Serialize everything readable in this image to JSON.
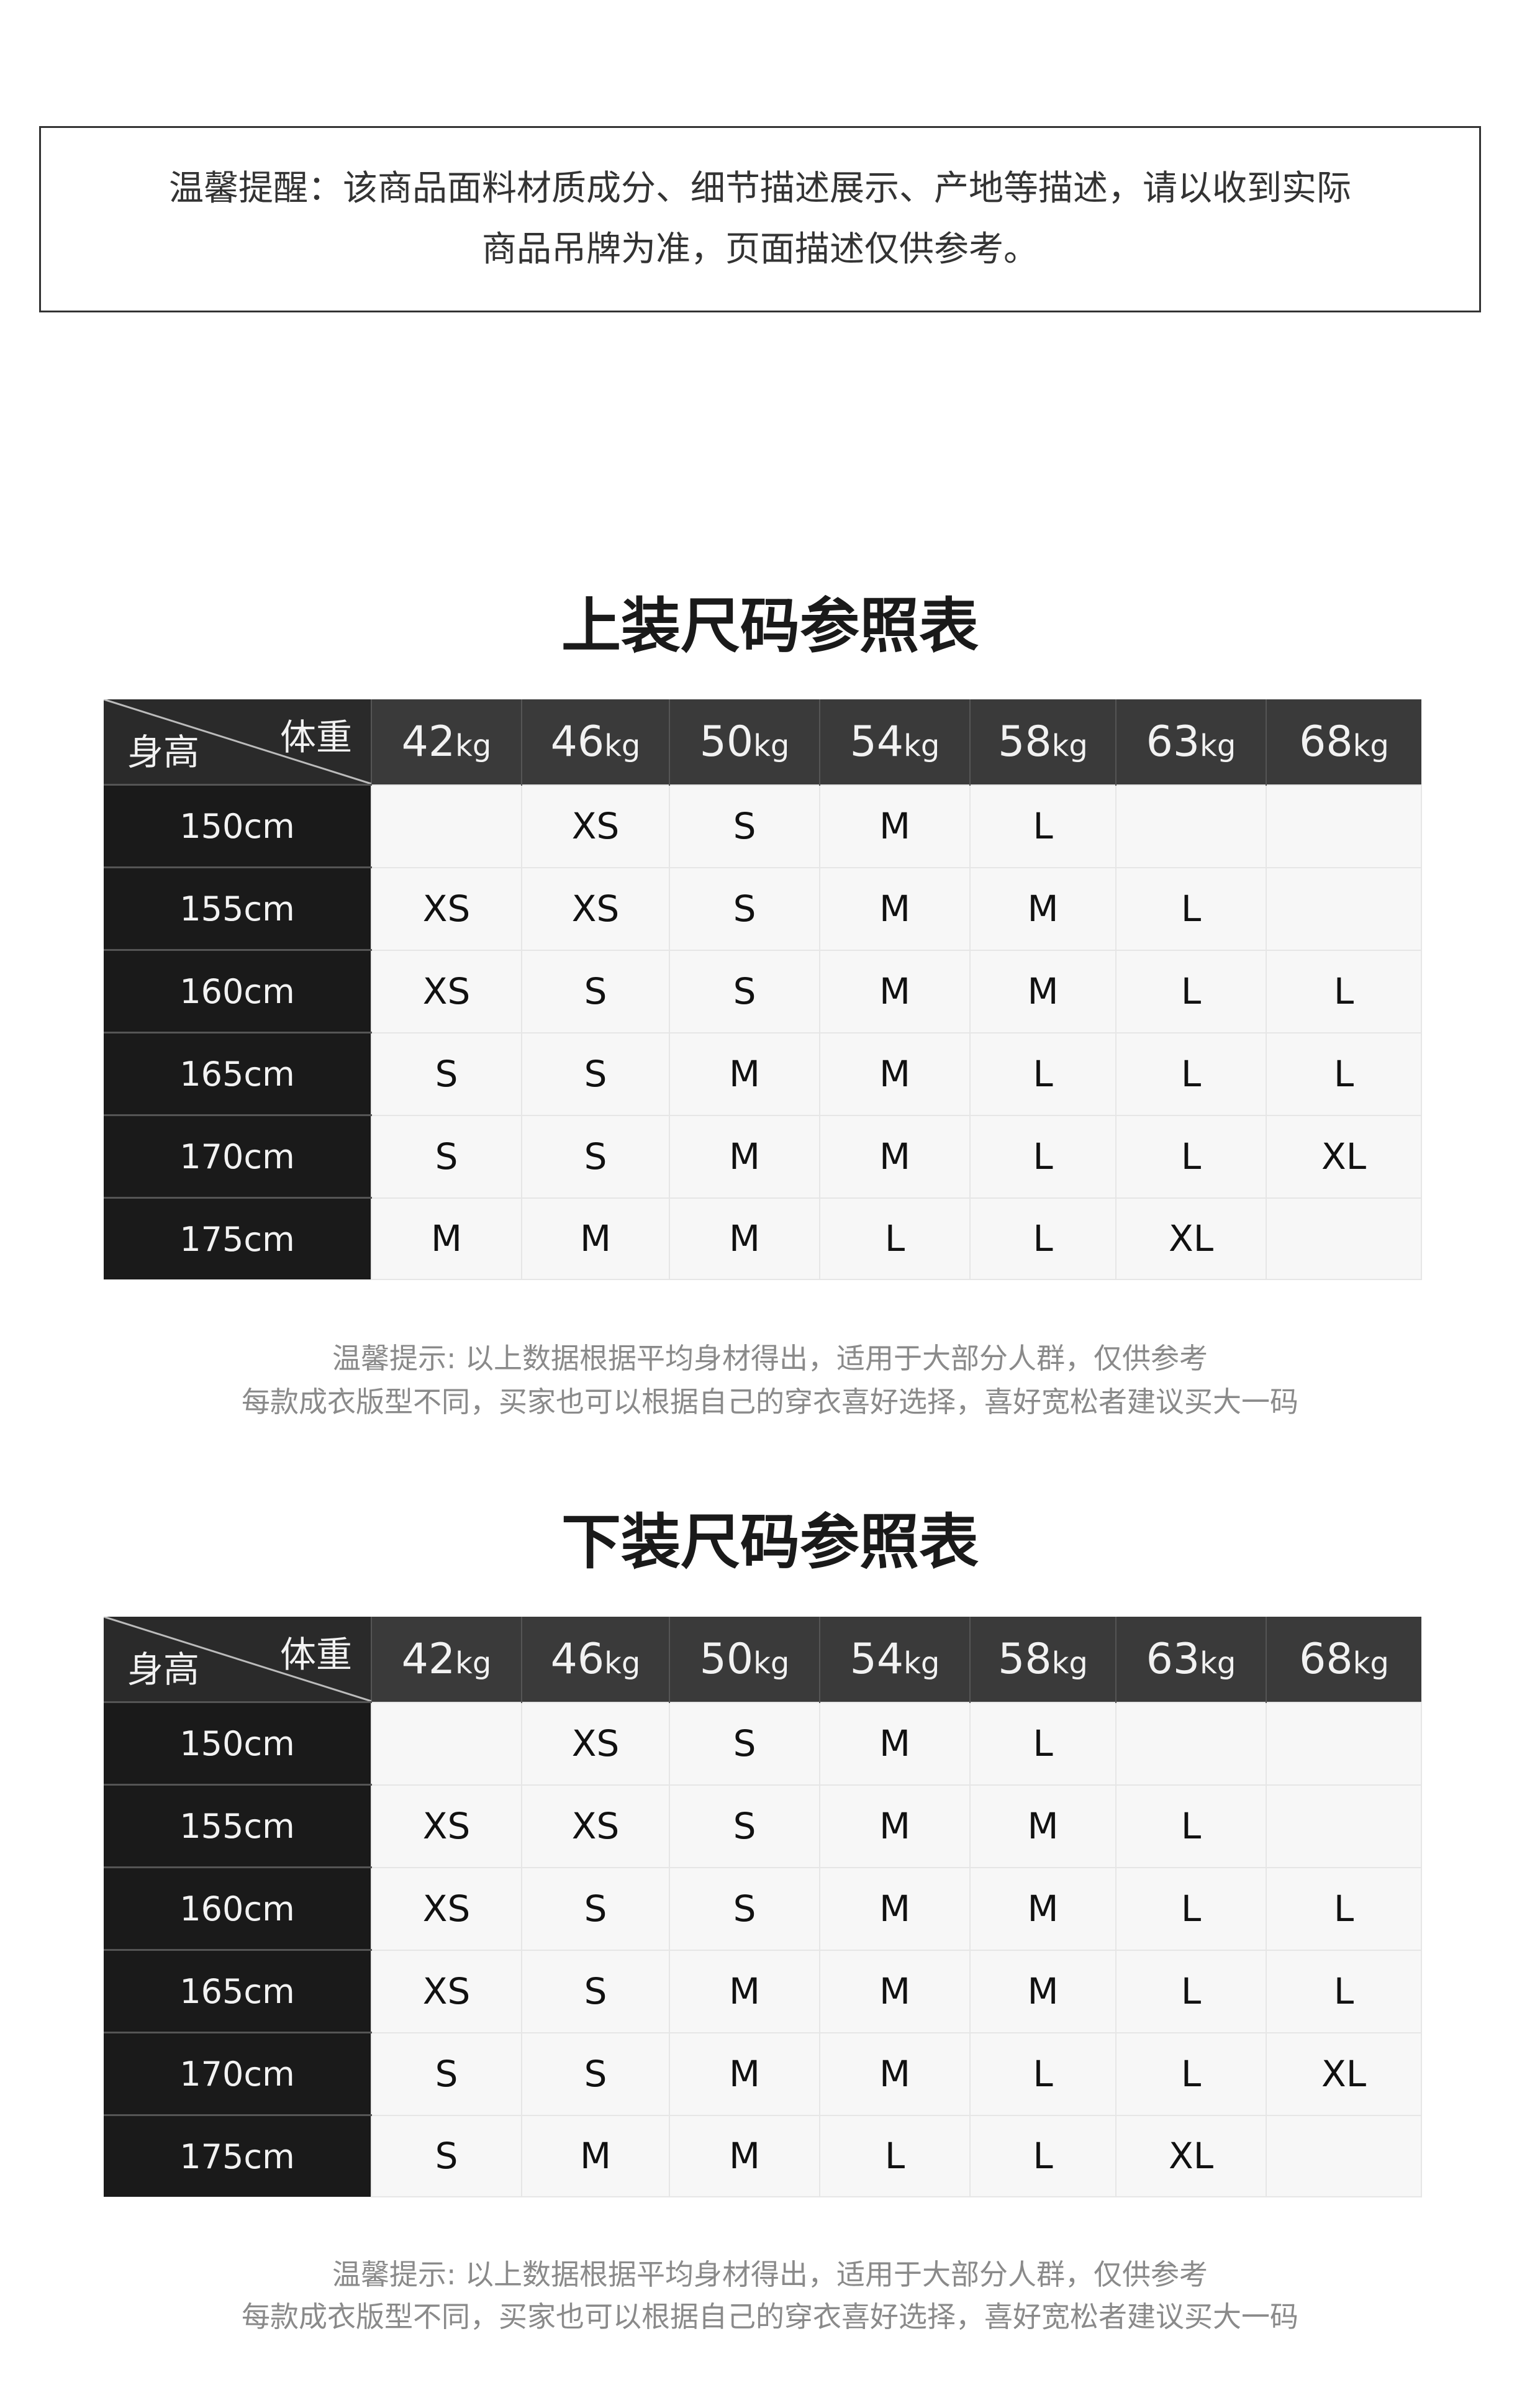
{
  "notice": {
    "line1": "温馨提醒：该商品面料材质成分、细节描述展示、产地等描述，请以收到实际",
    "line2": "商品吊牌为准，页面描述仅供参考。"
  },
  "colors": {
    "header_bg": "#3a3a3a",
    "row_header_bg": "#1a1a1a",
    "cell_bg": "#f7f7f7"
  },
  "tables": [
    {
      "title": "上装尺码参照表",
      "corner_weight": "体重",
      "corner_height": "身高",
      "weights": [
        "42",
        "46",
        "50",
        "54",
        "58",
        "63",
        "68"
      ],
      "weight_unit": "kg",
      "rows": [
        {
          "height": "150cm",
          "sizes": [
            "",
            "XS",
            "S",
            "M",
            "L",
            "",
            ""
          ]
        },
        {
          "height": "155cm",
          "sizes": [
            "XS",
            "XS",
            "S",
            "M",
            "M",
            "L",
            ""
          ]
        },
        {
          "height": "160cm",
          "sizes": [
            "XS",
            "S",
            "S",
            "M",
            "M",
            "L",
            "L"
          ]
        },
        {
          "height": "165cm",
          "sizes": [
            "S",
            "S",
            "M",
            "M",
            "L",
            "L",
            "L"
          ]
        },
        {
          "height": "170cm",
          "sizes": [
            "S",
            "S",
            "M",
            "M",
            "L",
            "L",
            "XL"
          ]
        },
        {
          "height": "175cm",
          "sizes": [
            "M",
            "M",
            "M",
            "L",
            "L",
            "XL",
            ""
          ]
        }
      ],
      "note1": "温馨提示: 以上数据根据平均身材得出，适用于大部分人群，仅供参考",
      "note2": "每款成衣版型不同，买家也可以根据自己的穿衣喜好选择，喜好宽松者建议买大一码"
    },
    {
      "title": "下装尺码参照表",
      "corner_weight": "体重",
      "corner_height": "身高",
      "weights": [
        "42",
        "46",
        "50",
        "54",
        "58",
        "63",
        "68"
      ],
      "weight_unit": "kg",
      "rows": [
        {
          "height": "150cm",
          "sizes": [
            "",
            "XS",
            "S",
            "M",
            "L",
            "",
            ""
          ]
        },
        {
          "height": "155cm",
          "sizes": [
            "XS",
            "XS",
            "S",
            "M",
            "M",
            "L",
            ""
          ]
        },
        {
          "height": "160cm",
          "sizes": [
            "XS",
            "S",
            "S",
            "M",
            "M",
            "L",
            "L"
          ]
        },
        {
          "height": "165cm",
          "sizes": [
            "XS",
            "S",
            "M",
            "M",
            "M",
            "L",
            "L"
          ]
        },
        {
          "height": "170cm",
          "sizes": [
            "S",
            "S",
            "M",
            "M",
            "L",
            "L",
            "XL"
          ]
        },
        {
          "height": "175cm",
          "sizes": [
            "S",
            "M",
            "M",
            "L",
            "L",
            "XL",
            ""
          ]
        }
      ],
      "note1": "温馨提示: 以上数据根据平均身材得出，适用于大部分人群，仅供参考",
      "note2": "每款成衣版型不同，买家也可以根据自己的穿衣喜好选择，喜好宽松者建议买大一码"
    }
  ]
}
